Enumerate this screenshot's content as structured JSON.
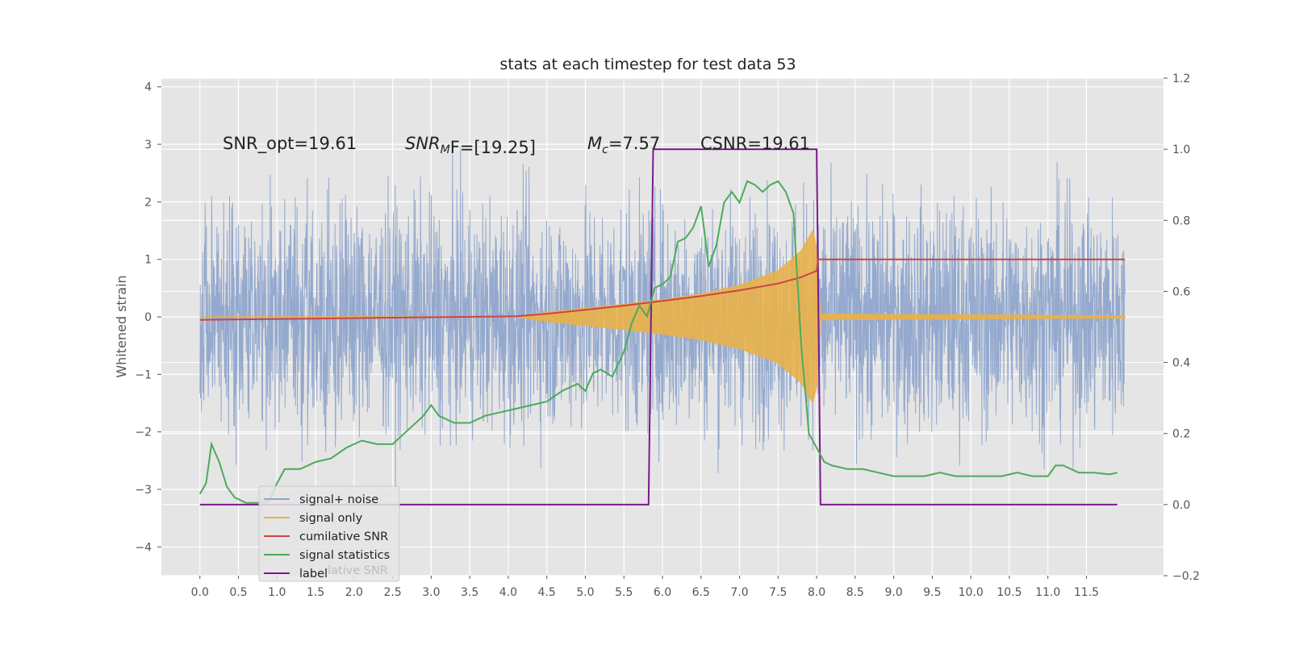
{
  "chart_data": {
    "type": "line",
    "title": "stats at each timestep for test data 53",
    "ylabel": "Whitened strain",
    "xlim": [
      -0.5,
      12.5
    ],
    "ylim": [
      -4.5,
      4.15
    ],
    "y2lim": [
      -0.2,
      1.2
    ],
    "x_ticks": [
      "0.0",
      "0.5",
      "1.0",
      "1.5",
      "2.0",
      "2.5",
      "3.0",
      "3.5",
      "4.0",
      "4.5",
      "5.0",
      "5.5",
      "6.0",
      "6.5",
      "7.0",
      "7.5",
      "8.0",
      "8.5",
      "9.0",
      "9.5",
      "10.0",
      "10.5",
      "11.0",
      "11.5"
    ],
    "y_ticks": [
      "4",
      "3",
      "2",
      "1",
      "0",
      "−1",
      "−2",
      "−3",
      "−4"
    ],
    "y2_ticks": [
      "1.2",
      "1.0",
      "0.8",
      "0.6",
      "0.4",
      "0.2",
      "0.0",
      "−0.2"
    ],
    "grid": true,
    "annotations": {
      "snr_opt": "SNR_opt=19.61",
      "snr_mf_main": "SNR",
      "snr_mf_sub": "M",
      "snr_mf_rest": "F=[19.25]",
      "mc_main": "M",
      "mc_sub": "c",
      "mc_rest": "=7.57",
      "csnr": "CSNR=19.61"
    },
    "legend": {
      "placement": "lower-left",
      "entries": [
        "signal+ noise",
        "signal only",
        "cumilative SNR",
        "signal statistics",
        "label"
      ],
      "hidden_text": "lative SNR"
    },
    "series": [
      {
        "name": "signal+ noise",
        "axis": "left",
        "color": "#8fa5cc",
        "description_range": [
          0.0,
          12.0
        ],
        "amplitude_sigma": 1.0
      },
      {
        "name": "signal only",
        "axis": "left",
        "color": "#e8b14a",
        "envelope": {
          "x": [
            4.1,
            4.5,
            5.0,
            5.5,
            6.0,
            6.5,
            7.0,
            7.5,
            7.8,
            7.95,
            8.0,
            8.05,
            12.0
          ],
          "y": [
            0.0,
            0.08,
            0.15,
            0.22,
            0.3,
            0.4,
            0.55,
            0.8,
            1.15,
            1.5,
            1.2,
            0.05,
            0.02
          ]
        }
      },
      {
        "name": "cumilative SNR",
        "axis": "right",
        "color": "#cc4444",
        "x": [
          0.0,
          4.1,
          4.5,
          5.0,
          5.5,
          6.0,
          6.5,
          7.0,
          7.5,
          7.8,
          8.0,
          8.02,
          12.0
        ],
        "y": [
          0.52,
          0.53,
          0.537,
          0.548,
          0.56,
          0.573,
          0.587,
          0.603,
          0.622,
          0.64,
          0.658,
          0.69,
          0.69
        ]
      },
      {
        "name": "signal statistics",
        "axis": "right",
        "color": "#4daa5a",
        "x": [
          0.0,
          0.08,
          0.15,
          0.25,
          0.35,
          0.45,
          0.6,
          0.75,
          0.9,
          1.0,
          1.1,
          1.3,
          1.5,
          1.7,
          1.9,
          2.1,
          2.3,
          2.5,
          2.7,
          2.9,
          3.0,
          3.1,
          3.3,
          3.5,
          3.7,
          3.9,
          4.1,
          4.3,
          4.5,
          4.7,
          4.9,
          5.0,
          5.1,
          5.2,
          5.35,
          5.5,
          5.6,
          5.7,
          5.8,
          5.9,
          6.0,
          6.1,
          6.2,
          6.3,
          6.4,
          6.5,
          6.55,
          6.6,
          6.7,
          6.8,
          6.9,
          7.0,
          7.1,
          7.2,
          7.3,
          7.4,
          7.5,
          7.6,
          7.7,
          7.8,
          7.9,
          8.0,
          8.05,
          8.1,
          8.2,
          8.4,
          8.6,
          8.8,
          9.0,
          9.2,
          9.4,
          9.6,
          9.8,
          10.0,
          10.2,
          10.4,
          10.6,
          10.8,
          11.0,
          11.1,
          11.2,
          11.4,
          11.6,
          11.8,
          11.9
        ],
        "y": [
          0.03,
          0.06,
          0.17,
          0.12,
          0.05,
          0.02,
          0.005,
          0.005,
          0.01,
          0.06,
          0.1,
          0.1,
          0.12,
          0.13,
          0.16,
          0.18,
          0.17,
          0.17,
          0.21,
          0.25,
          0.28,
          0.25,
          0.23,
          0.23,
          0.25,
          0.26,
          0.27,
          0.28,
          0.29,
          0.32,
          0.34,
          0.32,
          0.37,
          0.38,
          0.36,
          0.43,
          0.51,
          0.56,
          0.53,
          0.61,
          0.62,
          0.64,
          0.74,
          0.75,
          0.78,
          0.84,
          0.76,
          0.67,
          0.73,
          0.85,
          0.88,
          0.85,
          0.91,
          0.9,
          0.88,
          0.9,
          0.91,
          0.88,
          0.82,
          0.45,
          0.2,
          0.16,
          0.14,
          0.12,
          0.11,
          0.1,
          0.1,
          0.09,
          0.08,
          0.08,
          0.08,
          0.09,
          0.08,
          0.08,
          0.08,
          0.08,
          0.09,
          0.08,
          0.08,
          0.11,
          0.11,
          0.09,
          0.09,
          0.085,
          0.09
        ]
      },
      {
        "name": "label",
        "axis": "right",
        "color": "#7a1b8c",
        "x": [
          0.0,
          5.82,
          5.88,
          8.0,
          8.05,
          11.9
        ],
        "y": [
          0.0,
          0.0,
          1.0,
          1.0,
          0.0,
          0.0
        ]
      }
    ]
  }
}
